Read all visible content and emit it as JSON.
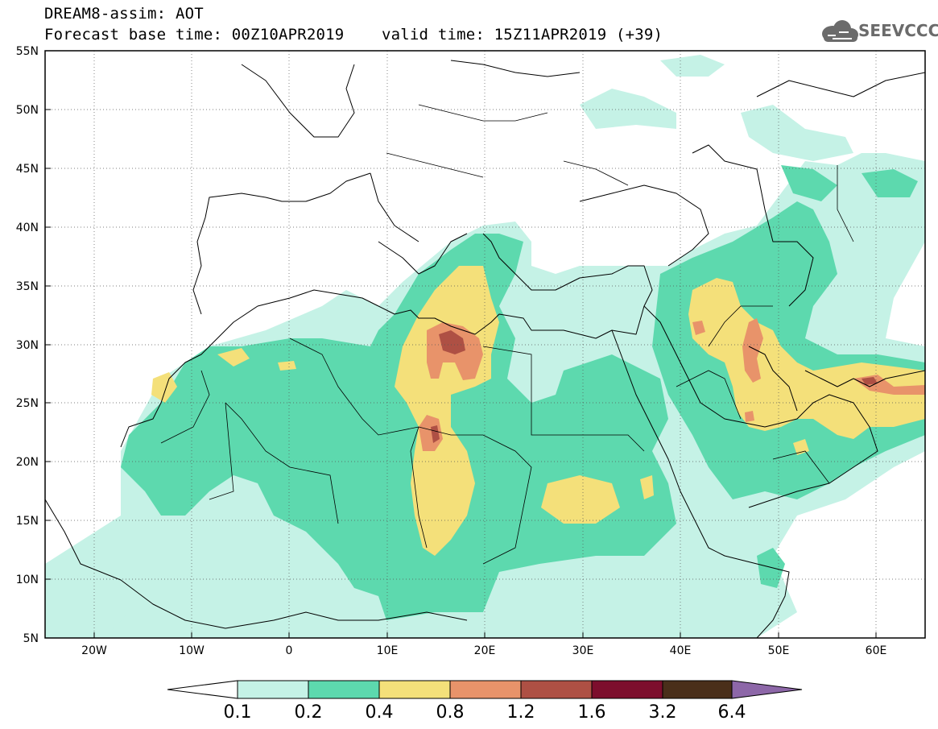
{
  "header": {
    "line1": "DREAM8-assim: AOT",
    "line2": "Forecast base time: 00Z10APR2019    valid time: 15Z11APR2019 (+39)"
  },
  "logo": {
    "text": "SEEVCCC",
    "icon": "cloud-logo-icon",
    "color": "#6b6b6b"
  },
  "map": {
    "lon_range": [
      -25,
      65
    ],
    "lat_range": [
      5,
      55
    ],
    "lat_ticks": [
      "55N",
      "50N",
      "45N",
      "40N",
      "35N",
      "30N",
      "25N",
      "20N",
      "15N",
      "10N",
      "5N"
    ],
    "lon_ticks": [
      "20W",
      "10W",
      "0",
      "10E",
      "20E",
      "30E",
      "40E",
      "50E",
      "60E"
    ],
    "grid": "dotted"
  },
  "legend": {
    "labels": [
      "0.1",
      "0.2",
      "0.4",
      "0.8",
      "1.2",
      "1.6",
      "3.2",
      "6.4"
    ],
    "colors": [
      "#ffffff",
      "#c5f2e6",
      "#5dd9ae",
      "#f4e07a",
      "#e8936a",
      "#ae5044",
      "#7d0e2d",
      "#4a2f1a",
      "#8d67a8"
    ]
  }
}
